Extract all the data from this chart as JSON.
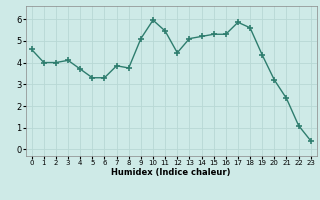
{
  "x": [
    0,
    1,
    2,
    3,
    4,
    5,
    6,
    7,
    8,
    9,
    10,
    11,
    12,
    13,
    14,
    15,
    16,
    17,
    18,
    19,
    20,
    21,
    22,
    23
  ],
  "y": [
    4.6,
    4.0,
    4.0,
    4.1,
    3.7,
    3.3,
    3.3,
    3.85,
    3.75,
    5.1,
    5.95,
    5.45,
    4.45,
    5.1,
    5.2,
    5.3,
    5.3,
    5.85,
    5.6,
    4.35,
    3.2,
    2.35,
    1.1,
    0.4
  ],
  "xlabel": "Humidex (Indice chaleur)",
  "ylabel": "",
  "xlim": [
    -0.5,
    23.5
  ],
  "ylim": [
    -0.3,
    6.6
  ],
  "yticks": [
    0,
    1,
    2,
    3,
    4,
    5,
    6
  ],
  "xticks": [
    0,
    1,
    2,
    3,
    4,
    5,
    6,
    7,
    8,
    9,
    10,
    11,
    12,
    13,
    14,
    15,
    16,
    17,
    18,
    19,
    20,
    21,
    22,
    23
  ],
  "line_color": "#2e7d6e",
  "marker": "+",
  "marker_size": 4,
  "marker_lw": 1.2,
  "line_width": 1.0,
  "bg_color": "#ceeae7",
  "grid_color": "#b8d8d4",
  "fig_bg": "#ceeae7",
  "xlabel_fontsize": 6.0,
  "tick_fontsize_x": 5.0,
  "tick_fontsize_y": 6.0
}
